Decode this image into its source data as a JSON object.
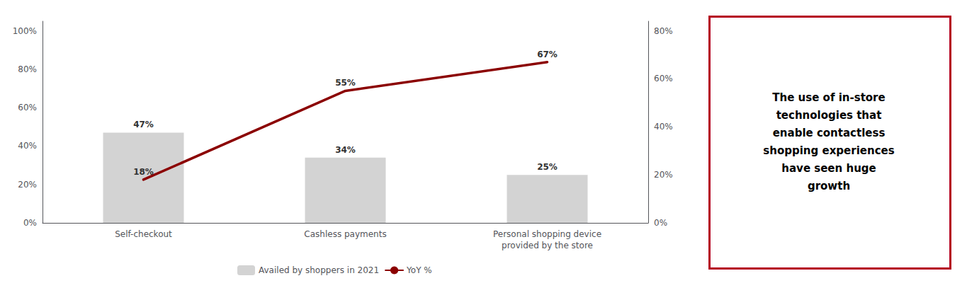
{
  "chart_data": {
    "type": "bar",
    "categories": [
      "Self-checkout",
      "Cashless payments",
      "Personal shopping device\nprovided by the store"
    ],
    "series": [
      {
        "name": "Availed by shoppers in 2021",
        "type": "bar",
        "color": "#d3d3d3",
        "values": [
          0.47,
          0.34,
          0.25
        ],
        "value_labels": [
          "47%",
          "34%",
          "25%"
        ]
      },
      {
        "name": "YoY %",
        "type": "line",
        "axis": "y2",
        "color": "#8b0000",
        "values": [
          0.18,
          0.55,
          0.67
        ],
        "value_labels": [
          "18%",
          "55%",
          "67%"
        ]
      }
    ],
    "ylim": [
      0,
      1.05
    ],
    "yticks": [
      {
        "value": 0,
        "label": "0%"
      },
      {
        "value": 0.2,
        "label": "20%"
      },
      {
        "value": 0.4,
        "label": "40%"
      },
      {
        "value": 0.6,
        "label": "60%"
      },
      {
        "value": 0.8,
        "label": "80%"
      },
      {
        "value": 1.0,
        "label": "100%"
      }
    ],
    "y2lim": [
      0,
      0.84
    ],
    "y2ticks": [
      {
        "value": 0,
        "label": "0%"
      },
      {
        "value": 0.2,
        "label": "20%"
      },
      {
        "value": 0.4,
        "label": "40%"
      },
      {
        "value": 0.6,
        "label": "60%"
      },
      {
        "value": 0.8,
        "label": "80%"
      }
    ],
    "data_labels": true,
    "grid": false,
    "legend": "bottom",
    "annotation": {
      "text": "The use of in-store\ntechnologies that\nenable contactless\nshopping experiences\nhave seen huge\ngrowth",
      "color": "#b5001f"
    }
  }
}
